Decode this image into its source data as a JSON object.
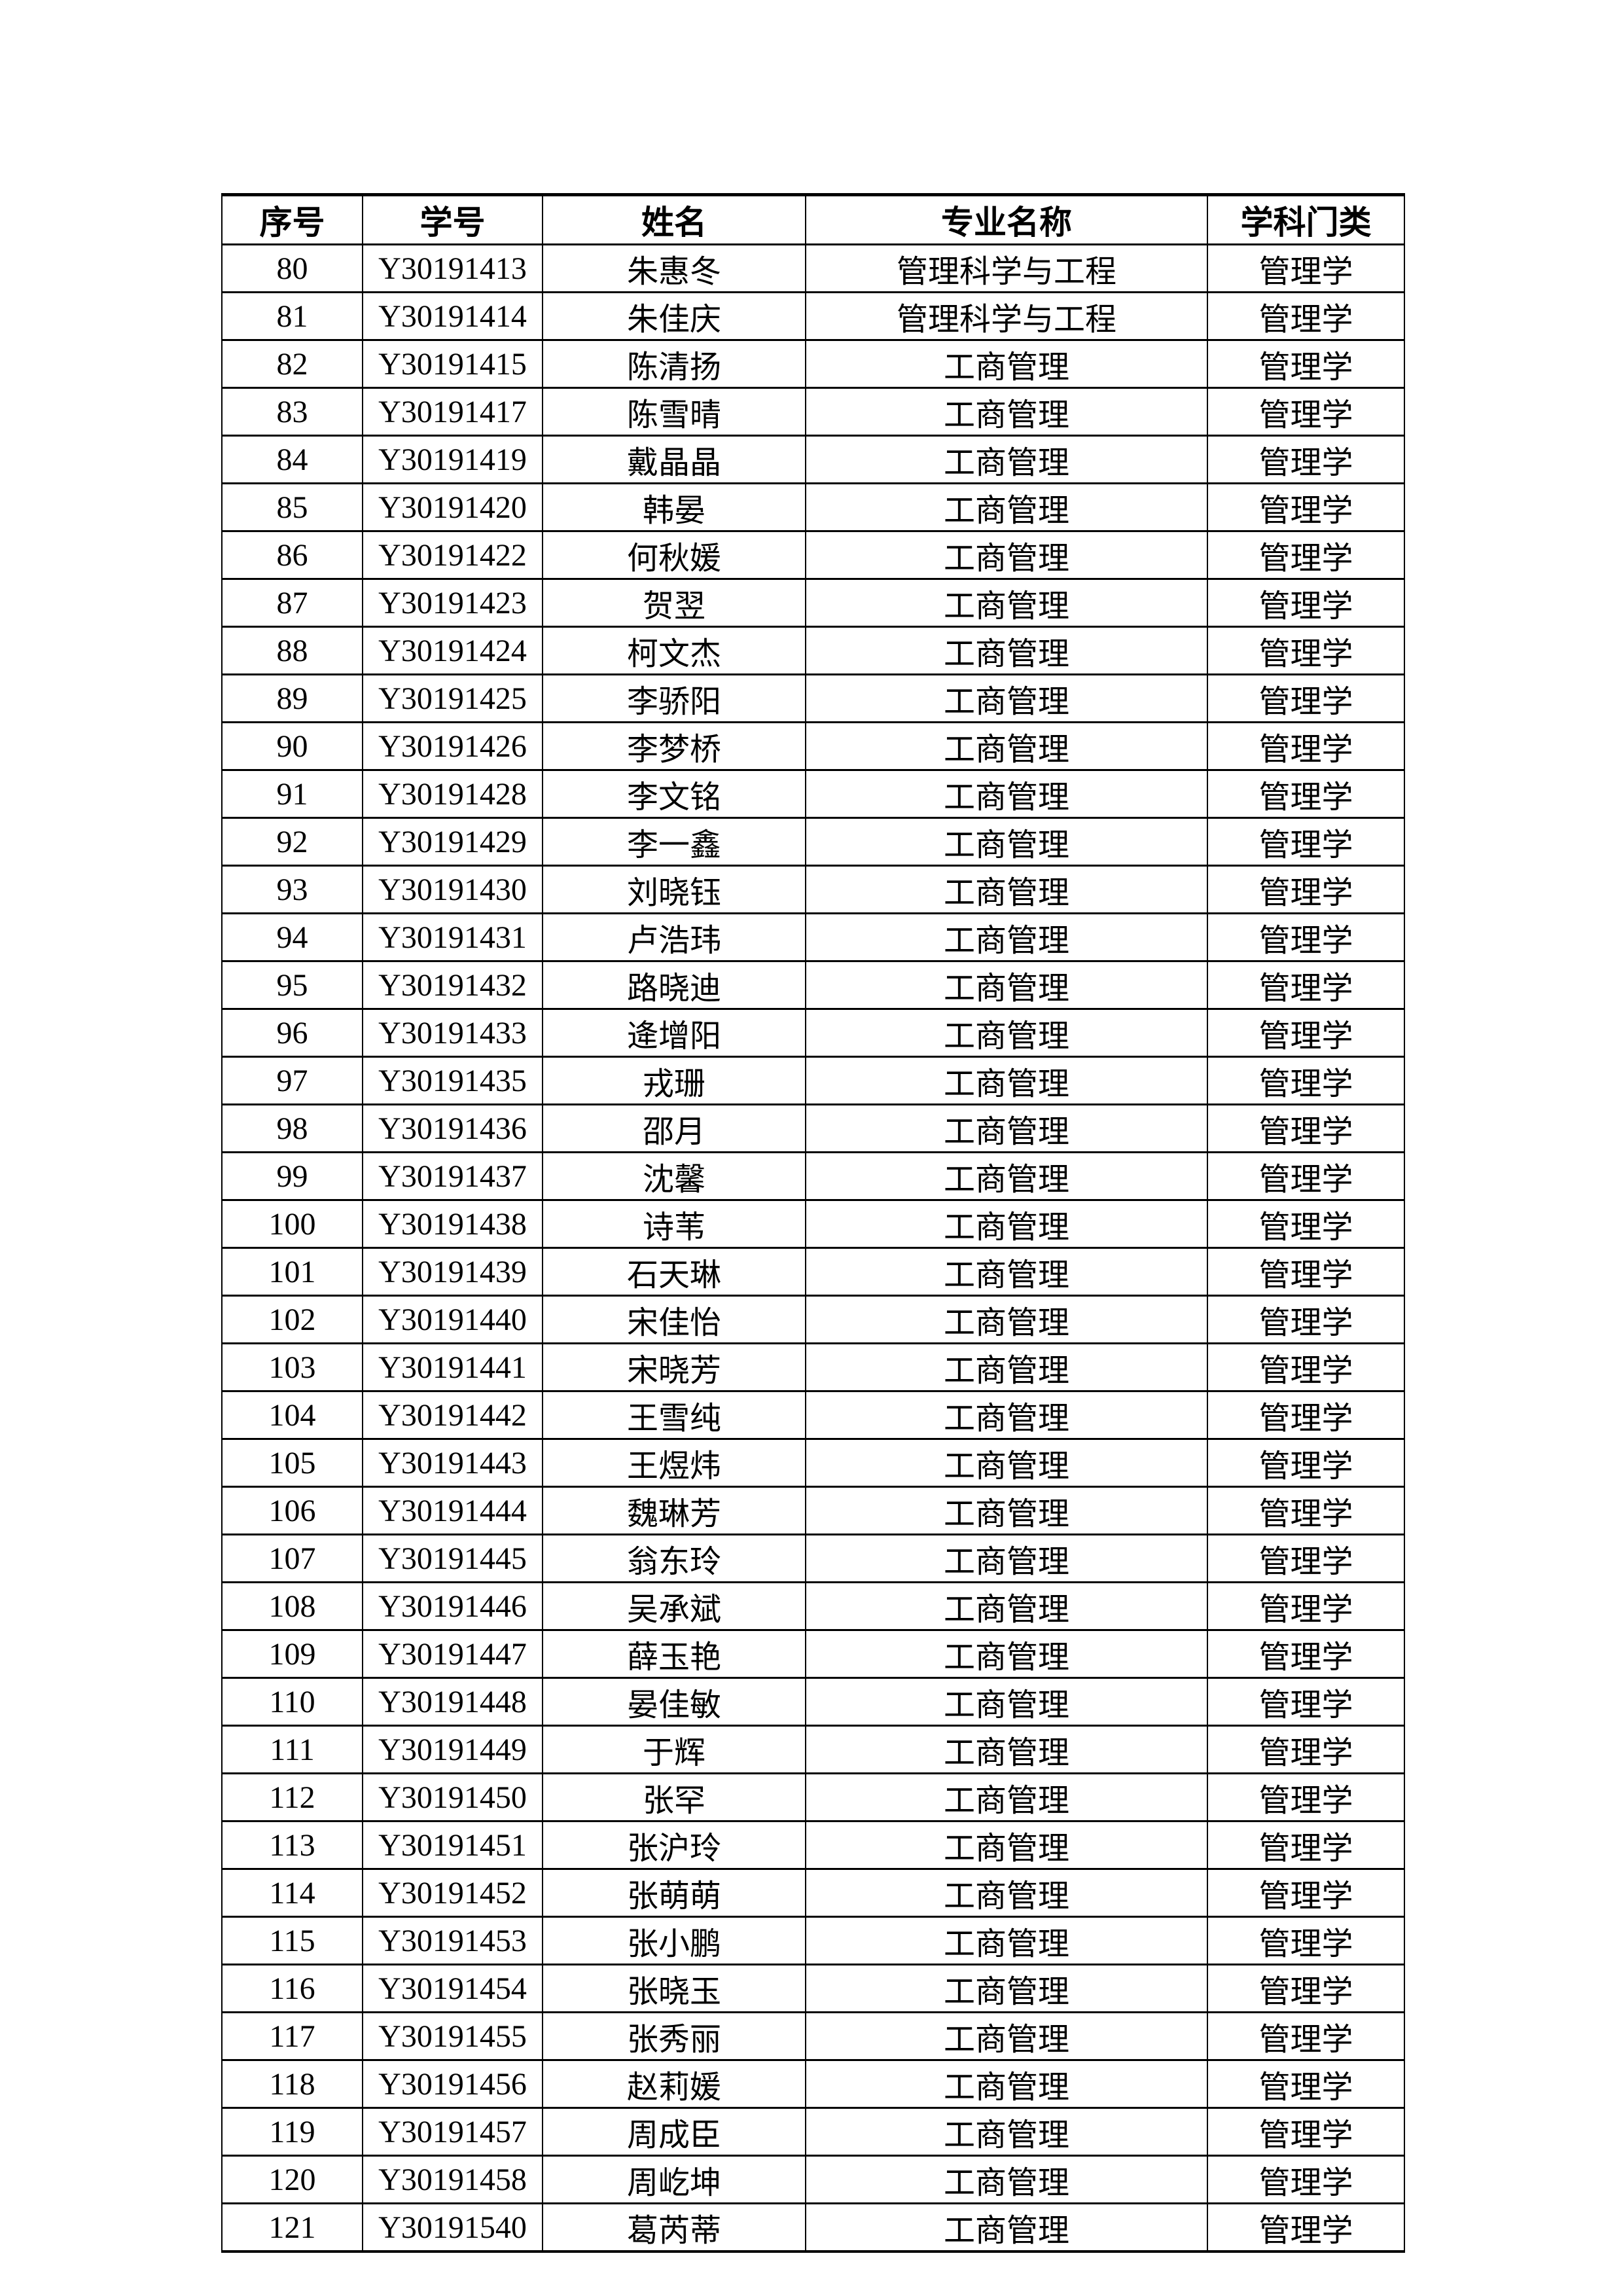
{
  "table": {
    "headers": [
      "序号",
      "学号",
      "姓名",
      "专业名称",
      "学科门类"
    ],
    "rows": [
      [
        "80",
        "Y30191413",
        "朱惠冬",
        "管理科学与工程",
        "管理学"
      ],
      [
        "81",
        "Y30191414",
        "朱佳庆",
        "管理科学与工程",
        "管理学"
      ],
      [
        "82",
        "Y30191415",
        "陈清扬",
        "工商管理",
        "管理学"
      ],
      [
        "83",
        "Y30191417",
        "陈雪晴",
        "工商管理",
        "管理学"
      ],
      [
        "84",
        "Y30191419",
        "戴晶晶",
        "工商管理",
        "管理学"
      ],
      [
        "85",
        "Y30191420",
        "韩晏",
        "工商管理",
        "管理学"
      ],
      [
        "86",
        "Y30191422",
        "何秋媛",
        "工商管理",
        "管理学"
      ],
      [
        "87",
        "Y30191423",
        "贺翌",
        "工商管理",
        "管理学"
      ],
      [
        "88",
        "Y30191424",
        "柯文杰",
        "工商管理",
        "管理学"
      ],
      [
        "89",
        "Y30191425",
        "李骄阳",
        "工商管理",
        "管理学"
      ],
      [
        "90",
        "Y30191426",
        "李梦桥",
        "工商管理",
        "管理学"
      ],
      [
        "91",
        "Y30191428",
        "李文铭",
        "工商管理",
        "管理学"
      ],
      [
        "92",
        "Y30191429",
        "李一鑫",
        "工商管理",
        "管理学"
      ],
      [
        "93",
        "Y30191430",
        "刘晓钰",
        "工商管理",
        "管理学"
      ],
      [
        "94",
        "Y30191431",
        "卢浩玮",
        "工商管理",
        "管理学"
      ],
      [
        "95",
        "Y30191432",
        "路晓迪",
        "工商管理",
        "管理学"
      ],
      [
        "96",
        "Y30191433",
        "逄增阳",
        "工商管理",
        "管理学"
      ],
      [
        "97",
        "Y30191435",
        "戎珊",
        "工商管理",
        "管理学"
      ],
      [
        "98",
        "Y30191436",
        "邵月",
        "工商管理",
        "管理学"
      ],
      [
        "99",
        "Y30191437",
        "沈馨",
        "工商管理",
        "管理学"
      ],
      [
        "100",
        "Y30191438",
        "诗苇",
        "工商管理",
        "管理学"
      ],
      [
        "101",
        "Y30191439",
        "石天琳",
        "工商管理",
        "管理学"
      ],
      [
        "102",
        "Y30191440",
        "宋佳怡",
        "工商管理",
        "管理学"
      ],
      [
        "103",
        "Y30191441",
        "宋晓芳",
        "工商管理",
        "管理学"
      ],
      [
        "104",
        "Y30191442",
        "王雪纯",
        "工商管理",
        "管理学"
      ],
      [
        "105",
        "Y30191443",
        "王煜炜",
        "工商管理",
        "管理学"
      ],
      [
        "106",
        "Y30191444",
        "魏琳芳",
        "工商管理",
        "管理学"
      ],
      [
        "107",
        "Y30191445",
        "翁东玲",
        "工商管理",
        "管理学"
      ],
      [
        "108",
        "Y30191446",
        "吴承斌",
        "工商管理",
        "管理学"
      ],
      [
        "109",
        "Y30191447",
        "薛玉艳",
        "工商管理",
        "管理学"
      ],
      [
        "110",
        "Y30191448",
        "晏佳敏",
        "工商管理",
        "管理学"
      ],
      [
        "111",
        "Y30191449",
        "于辉",
        "工商管理",
        "管理学"
      ],
      [
        "112",
        "Y30191450",
        "张罕",
        "工商管理",
        "管理学"
      ],
      [
        "113",
        "Y30191451",
        "张沪玲",
        "工商管理",
        "管理学"
      ],
      [
        "114",
        "Y30191452",
        "张萌萌",
        "工商管理",
        "管理学"
      ],
      [
        "115",
        "Y30191453",
        "张小鹏",
        "工商管理",
        "管理学"
      ],
      [
        "116",
        "Y30191454",
        "张晓玉",
        "工商管理",
        "管理学"
      ],
      [
        "117",
        "Y30191455",
        "张秀丽",
        "工商管理",
        "管理学"
      ],
      [
        "118",
        "Y30191456",
        "赵莉媛",
        "工商管理",
        "管理学"
      ],
      [
        "119",
        "Y30191457",
        "周成臣",
        "工商管理",
        "管理学"
      ],
      [
        "120",
        "Y30191458",
        "周屹坤",
        "工商管理",
        "管理学"
      ],
      [
        "121",
        "Y30191540",
        "葛芮蒂",
        "工商管理",
        "管理学"
      ]
    ]
  },
  "colors": {
    "text": "#000000",
    "border": "#000000",
    "background": "#ffffff"
  }
}
